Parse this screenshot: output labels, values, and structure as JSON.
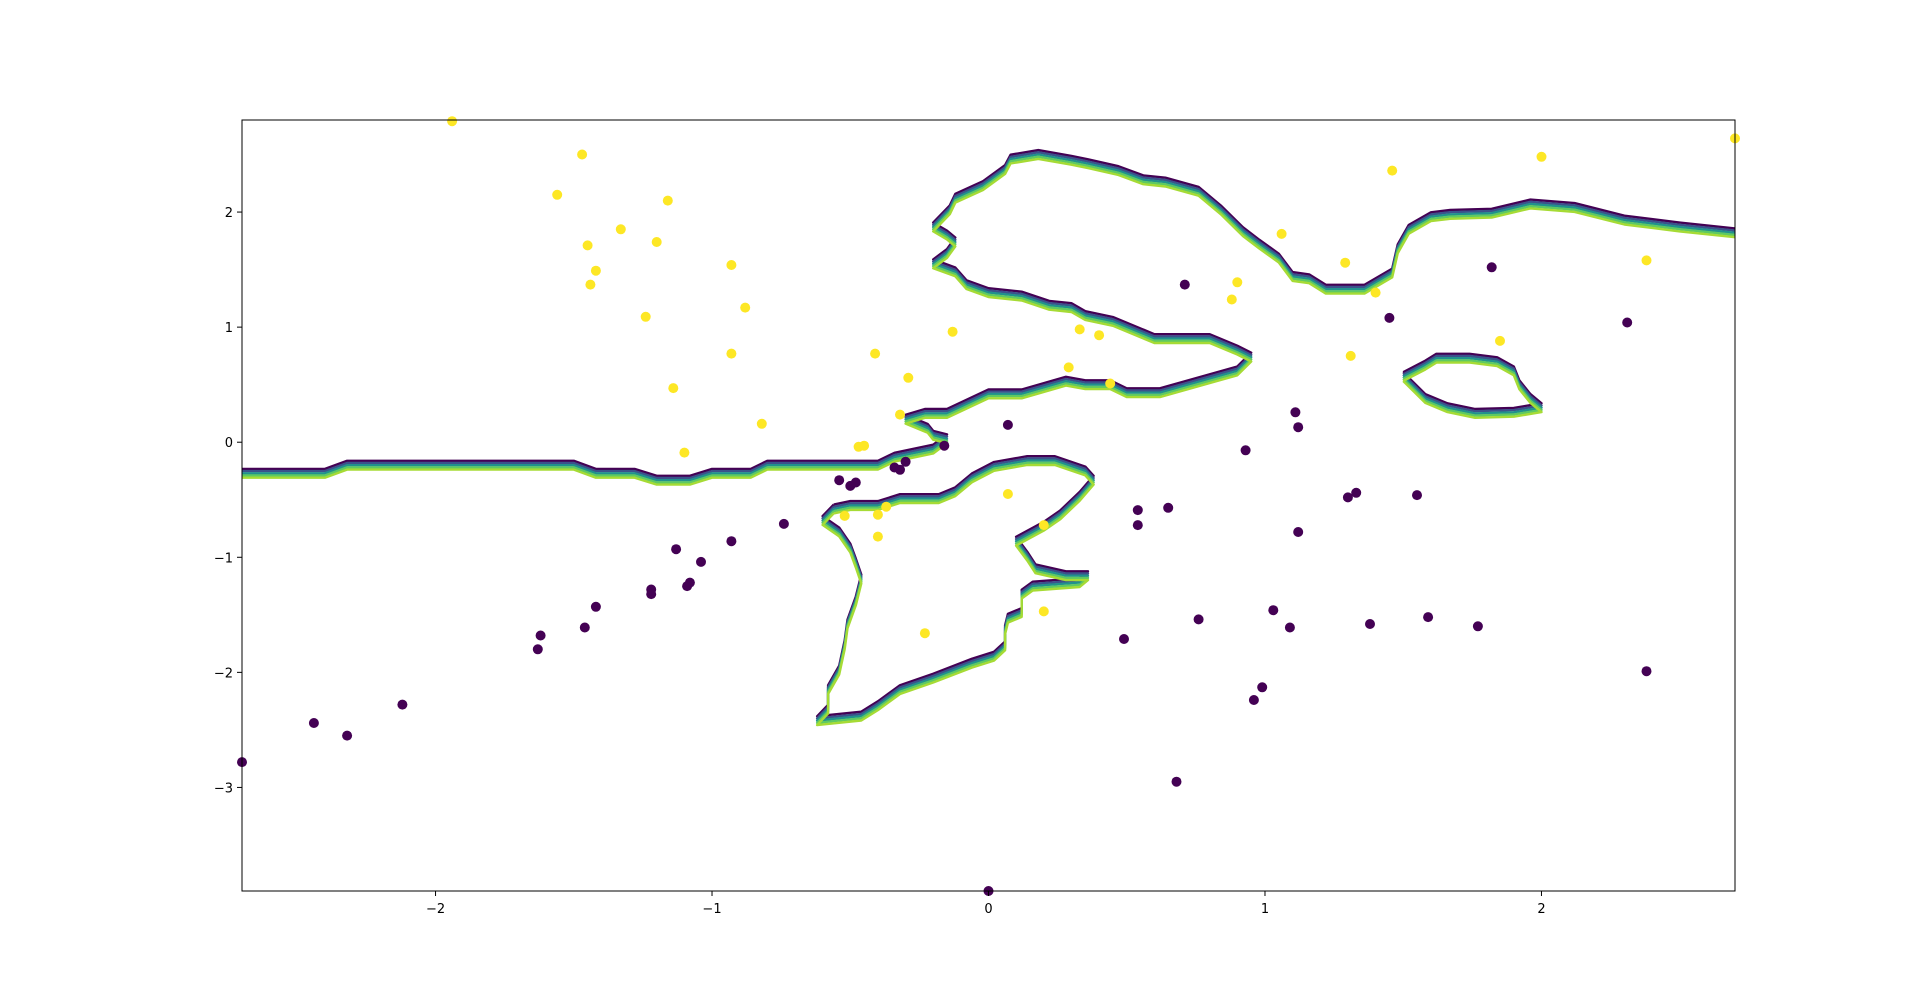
{
  "chart_data": {
    "type": "scatter",
    "xlim": [
      -2.7,
      2.7
    ],
    "ylim": [
      -3.9,
      2.8
    ],
    "grid": false,
    "legend": "none",
    "x_ticks": [
      -2,
      -1,
      0,
      1,
      2
    ],
    "y_ticks": [
      -3,
      -2,
      -1,
      0,
      1,
      2
    ],
    "x_tick_labels": [
      "−2",
      "−1",
      "0",
      "1",
      "2"
    ],
    "y_tick_labels": [
      "−3",
      "−2",
      "−1",
      "0",
      "1",
      "2"
    ],
    "colors": {
      "class0": "#440154",
      "class1": "#fde725",
      "contour_levels": [
        "#440154",
        "#3b528b",
        "#21918c",
        "#5ec962",
        "#a6db35"
      ]
    },
    "series": [
      {
        "class": 1,
        "color": "#fde725",
        "points": [
          [
            -1.94,
            2.79
          ],
          [
            -1.47,
            2.5
          ],
          [
            -1.56,
            2.15
          ],
          [
            -1.45,
            1.71
          ],
          [
            -1.44,
            1.37
          ],
          [
            -1.42,
            1.49
          ],
          [
            -1.33,
            1.85
          ],
          [
            -1.2,
            1.74
          ],
          [
            -1.16,
            2.1
          ],
          [
            -1.24,
            1.09
          ],
          [
            -1.14,
            0.47
          ],
          [
            -1.1,
            -0.09
          ],
          [
            -0.93,
            1.54
          ],
          [
            -0.93,
            0.77
          ],
          [
            -0.88,
            1.17
          ],
          [
            -0.82,
            0.16
          ],
          [
            -0.41,
            0.77
          ],
          [
            -0.29,
            0.56
          ],
          [
            -0.32,
            0.24
          ],
          [
            -0.13,
            0.96
          ],
          [
            -0.47,
            -0.04
          ],
          [
            -0.45,
            -0.03
          ],
          [
            -0.52,
            -0.64
          ],
          [
            -0.37,
            -0.56
          ],
          [
            -0.4,
            -0.63
          ],
          [
            -0.4,
            -0.82
          ],
          [
            -0.23,
            -1.66
          ],
          [
            0.07,
            -0.45
          ],
          [
            0.2,
            -0.72
          ],
          [
            0.2,
            -1.47
          ],
          [
            0.29,
            0.65
          ],
          [
            0.33,
            0.98
          ],
          [
            0.4,
            0.93
          ],
          [
            0.44,
            0.51
          ],
          [
            0.88,
            1.24
          ],
          [
            0.9,
            1.39
          ],
          [
            1.06,
            1.81
          ],
          [
            1.29,
            1.56
          ],
          [
            1.31,
            0.75
          ],
          [
            1.4,
            1.3
          ],
          [
            1.46,
            2.36
          ],
          [
            1.85,
            0.88
          ],
          [
            2.0,
            2.48
          ],
          [
            2.38,
            1.58
          ],
          [
            2.7,
            2.64
          ]
        ]
      },
      {
        "class": 0,
        "color": "#440154",
        "points": [
          [
            -2.7,
            -2.78
          ],
          [
            -2.44,
            -2.44
          ],
          [
            -2.32,
            -2.55
          ],
          [
            -2.12,
            -2.28
          ],
          [
            -1.63,
            -1.8
          ],
          [
            -1.62,
            -1.68
          ],
          [
            -1.46,
            -1.61
          ],
          [
            -1.42,
            -1.43
          ],
          [
            -1.22,
            -1.28
          ],
          [
            -1.22,
            -1.32
          ],
          [
            -1.13,
            -0.93
          ],
          [
            -1.09,
            -1.25
          ],
          [
            -1.08,
            -1.22
          ],
          [
            -1.04,
            -1.04
          ],
          [
            -0.93,
            -0.86
          ],
          [
            -0.74,
            -0.71
          ],
          [
            -0.54,
            -0.33
          ],
          [
            -0.5,
            -0.38
          ],
          [
            -0.48,
            -0.35
          ],
          [
            -0.34,
            -0.22
          ],
          [
            -0.32,
            -0.24
          ],
          [
            -0.3,
            -0.17
          ],
          [
            -0.16,
            -0.03
          ],
          [
            0.07,
            0.15
          ],
          [
            0.0,
            -3.9
          ],
          [
            0.49,
            -1.71
          ],
          [
            0.54,
            -0.59
          ],
          [
            0.54,
            -0.72
          ],
          [
            0.65,
            -0.57
          ],
          [
            0.68,
            -2.95
          ],
          [
            0.71,
            1.37
          ],
          [
            0.76,
            -1.54
          ],
          [
            0.93,
            -0.07
          ],
          [
            0.96,
            -2.24
          ],
          [
            0.99,
            -2.13
          ],
          [
            1.03,
            -1.46
          ],
          [
            1.09,
            -1.61
          ],
          [
            1.11,
            0.26
          ],
          [
            1.12,
            0.13
          ],
          [
            1.12,
            -0.78
          ],
          [
            1.3,
            -0.48
          ],
          [
            1.33,
            -0.44
          ],
          [
            1.38,
            -1.58
          ],
          [
            1.45,
            1.08
          ],
          [
            1.55,
            -0.46
          ],
          [
            1.59,
            -1.52
          ],
          [
            1.77,
            -1.6
          ],
          [
            1.82,
            1.52
          ],
          [
            2.31,
            1.04
          ],
          [
            2.38,
            -1.99
          ]
        ]
      }
    ],
    "contours": [
      [
        [
          -2.7,
          -0.27
        ],
        [
          -2.4,
          -0.27
        ],
        [
          -2.32,
          -0.2
        ],
        [
          -1.5,
          -0.2
        ],
        [
          -1.42,
          -0.27
        ],
        [
          -1.28,
          -0.27
        ],
        [
          -1.2,
          -0.33
        ],
        [
          -1.08,
          -0.33
        ],
        [
          -1.0,
          -0.27
        ],
        [
          -0.86,
          -0.27
        ],
        [
          -0.8,
          -0.2
        ],
        [
          -0.4,
          -0.2
        ],
        [
          -0.34,
          -0.13
        ],
        [
          -0.2,
          -0.06
        ],
        [
          -0.15,
          0.03
        ],
        [
          -0.2,
          0.06
        ],
        [
          -0.22,
          0.12
        ],
        [
          -0.3,
          0.2
        ],
        [
          -0.23,
          0.25
        ],
        [
          -0.15,
          0.25
        ],
        [
          0.0,
          0.42
        ],
        [
          0.12,
          0.42
        ],
        [
          0.28,
          0.53
        ],
        [
          0.35,
          0.5
        ],
        [
          0.44,
          0.5
        ],
        [
          0.5,
          0.43
        ],
        [
          0.62,
          0.43
        ],
        [
          0.9,
          0.62
        ],
        [
          0.95,
          0.74
        ],
        [
          0.9,
          0.8
        ],
        [
          0.8,
          0.9
        ],
        [
          0.6,
          0.9
        ],
        [
          0.45,
          1.05
        ],
        [
          0.35,
          1.1
        ],
        [
          0.3,
          1.17
        ],
        [
          0.22,
          1.19
        ],
        [
          0.12,
          1.27
        ],
        [
          0.0,
          1.3
        ],
        [
          -0.08,
          1.37
        ],
        [
          -0.12,
          1.48
        ],
        [
          -0.2,
          1.55
        ],
        [
          -0.15,
          1.64
        ],
        [
          -0.12,
          1.74
        ],
        [
          -0.15,
          1.8
        ],
        [
          -0.2,
          1.87
        ],
        [
          -0.14,
          2.02
        ],
        [
          -0.12,
          2.12
        ],
        [
          -0.02,
          2.23
        ],
        [
          0.06,
          2.37
        ],
        [
          0.08,
          2.46
        ],
        [
          0.18,
          2.5
        ],
        [
          0.3,
          2.45
        ],
        [
          0.36,
          2.42
        ],
        [
          0.47,
          2.36
        ],
        [
          0.56,
          2.28
        ],
        [
          0.64,
          2.26
        ],
        [
          0.76,
          2.18
        ],
        [
          0.84,
          2.02
        ],
        [
          0.92,
          1.83
        ],
        [
          0.98,
          1.72
        ],
        [
          1.05,
          1.6
        ],
        [
          1.1,
          1.44
        ],
        [
          1.16,
          1.42
        ],
        [
          1.22,
          1.33
        ],
        [
          1.36,
          1.33
        ],
        [
          1.46,
          1.47
        ],
        [
          1.48,
          1.68
        ],
        [
          1.52,
          1.85
        ],
        [
          1.6,
          1.96
        ],
        [
          1.67,
          1.98
        ],
        [
          1.82,
          1.99
        ],
        [
          1.96,
          2.07
        ],
        [
          2.12,
          2.04
        ],
        [
          2.3,
          1.93
        ],
        [
          2.5,
          1.87
        ],
        [
          2.7,
          1.82
        ]
      ],
      [
        [
          -0.56,
          -0.58
        ],
        [
          -0.5,
          -0.55
        ],
        [
          -0.4,
          -0.55
        ],
        [
          -0.32,
          -0.49
        ],
        [
          -0.18,
          -0.49
        ],
        [
          -0.12,
          -0.43
        ],
        [
          -0.06,
          -0.31
        ],
        [
          0.02,
          -0.21
        ],
        [
          0.14,
          -0.16
        ],
        [
          0.24,
          -0.16
        ],
        [
          0.35,
          -0.25
        ],
        [
          0.38,
          -0.33
        ],
        [
          0.33,
          -0.47
        ],
        [
          0.26,
          -0.63
        ],
        [
          0.2,
          -0.73
        ],
        [
          0.1,
          -0.86
        ],
        [
          0.14,
          -0.99
        ],
        [
          0.17,
          -1.1
        ],
        [
          0.28,
          -1.16
        ],
        [
          0.36,
          -1.16
        ],
        [
          0.33,
          -1.22
        ],
        [
          0.16,
          -1.25
        ],
        [
          0.12,
          -1.32
        ],
        [
          0.12,
          -1.48
        ],
        [
          0.07,
          -1.53
        ],
        [
          0.06,
          -1.63
        ],
        [
          0.06,
          -1.77
        ],
        [
          0.02,
          -1.86
        ],
        [
          -0.06,
          -1.92
        ],
        [
          -0.2,
          -2.05
        ],
        [
          -0.32,
          -2.15
        ],
        [
          -0.4,
          -2.29
        ],
        [
          -0.46,
          -2.38
        ],
        [
          -0.58,
          -2.41
        ],
        [
          -0.62,
          -2.42
        ],
        [
          -0.58,
          -2.32
        ],
        [
          -0.58,
          -2.15
        ],
        [
          -0.54,
          -1.98
        ],
        [
          -0.52,
          -1.76
        ],
        [
          -0.51,
          -1.58
        ],
        [
          -0.48,
          -1.38
        ],
        [
          -0.46,
          -1.19
        ],
        [
          -0.48,
          -1.05
        ],
        [
          -0.5,
          -0.92
        ],
        [
          -0.54,
          -0.78
        ],
        [
          -0.6,
          -0.68
        ],
        [
          -0.56,
          -0.58
        ]
      ],
      [
        [
          1.5,
          0.57
        ],
        [
          1.58,
          0.67
        ],
        [
          1.62,
          0.73
        ],
        [
          1.74,
          0.73
        ],
        [
          1.84,
          0.7
        ],
        [
          1.9,
          0.62
        ],
        [
          1.92,
          0.5
        ],
        [
          1.96,
          0.38
        ],
        [
          2.0,
          0.3
        ],
        [
          1.9,
          0.26
        ],
        [
          1.76,
          0.25
        ],
        [
          1.66,
          0.3
        ],
        [
          1.58,
          0.38
        ],
        [
          1.5,
          0.57
        ]
      ]
    ]
  }
}
